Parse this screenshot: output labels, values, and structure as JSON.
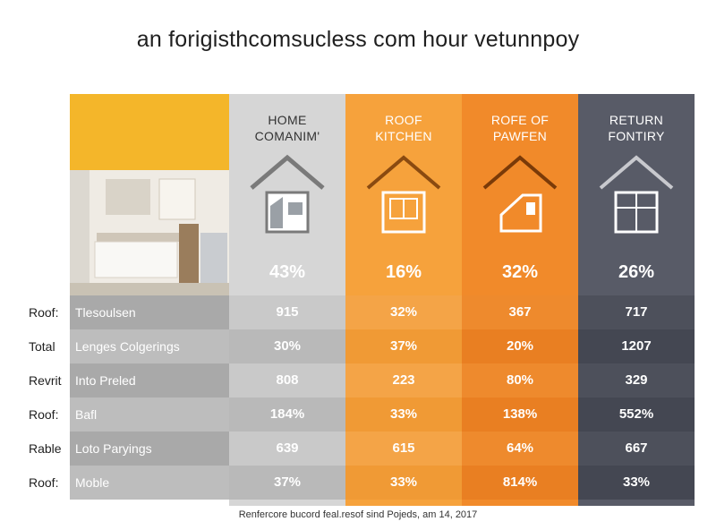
{
  "title": "an forigisthcomsucless com hour vetunnpoy",
  "footer": "Renfercore bucord feal.resof sind Pojeds, am 14, 2017",
  "colors": {
    "gray_col": "#d3d3d3",
    "orange1_col": "#f6a23c",
    "orange2_col": "#f18a2a",
    "slate_col": "#585b67",
    "photo_top": "#f4b62a"
  },
  "chart_data": {
    "type": "table",
    "title": "an forigisthcomsucless com hour vetunnpoy",
    "columns": [
      {
        "header_line1": "HOME",
        "header_line2": "COMANIM'",
        "headline_value": "43%",
        "icon": "house-home-icon"
      },
      {
        "header_line1": "ROOF",
        "header_line2": "KITCHEN",
        "headline_value": "16%",
        "icon": "house-kitchen-icon"
      },
      {
        "header_line1": "ROFE OF",
        "header_line2": "PAWFEN",
        "headline_value": "32%",
        "icon": "house-roof-icon"
      },
      {
        "header_line1": "RETURN",
        "header_line2": "FONTIRY",
        "headline_value": "26%",
        "icon": "house-window-icon"
      }
    ],
    "rows": [
      {
        "label_a": "Roof:",
        "label_b": "Tlesoulsen",
        "values": [
          "915",
          "32%",
          "367",
          "717"
        ]
      },
      {
        "label_a": "Total",
        "label_b": "Lenges Colgerings",
        "values": [
          "30%",
          "37%",
          "20%",
          "1207"
        ]
      },
      {
        "label_a": "Revrit",
        "label_b": "Into Preled",
        "values": [
          "808",
          "223",
          "80%",
          "329"
        ]
      },
      {
        "label_a": "Roof:",
        "label_b": "Bafl",
        "values": [
          "184%",
          "33%",
          "138%",
          "552%"
        ]
      },
      {
        "label_a": "Rable",
        "label_b": "Loto Paryings",
        "values": [
          "639",
          "615",
          "64%",
          "667"
        ]
      },
      {
        "label_a": "Roof:",
        "label_b": "Moble",
        "values": [
          "37%",
          "33%",
          "814%",
          "33%"
        ]
      }
    ]
  }
}
